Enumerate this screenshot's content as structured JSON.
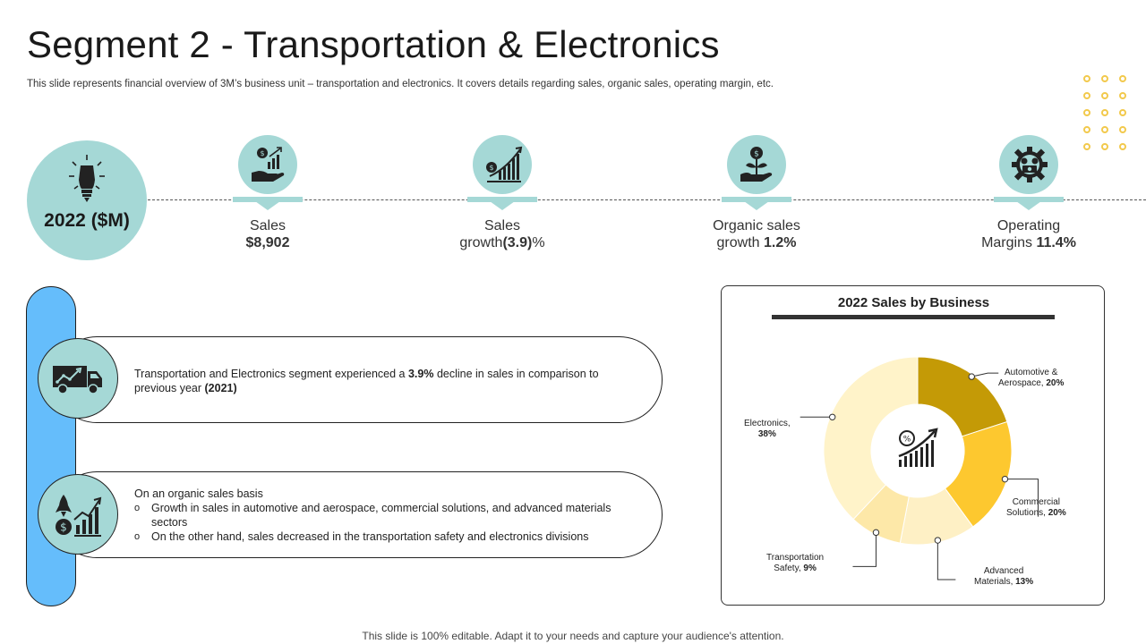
{
  "header": {
    "title": "Segment 2 - Transportation & Electronics",
    "subtitle": "This slide represents financial overview of 3M’s business unit – transportation and electronics. It covers details regarding sales, organic sales, operating margin, etc."
  },
  "year_badge": {
    "label": "2022 ($M)",
    "icon": "lightbulb-pencil-icon"
  },
  "kpis": [
    {
      "line1": "Sales",
      "line2_pre": "",
      "line2_bold": "$8,902",
      "line2_post": "",
      "icon": "hand-growth-icon"
    },
    {
      "line1": "Sales",
      "line2_pre": "growth",
      "line2_bold": "(3.9)",
      "line2_post": "%",
      "icon": "bar-growth-icon"
    },
    {
      "line1": "Organic sales",
      "line2_pre": "growth ",
      "line2_bold": "1.2%",
      "line2_post": "",
      "icon": "plant-hand-icon"
    },
    {
      "line1": "Operating",
      "line2_pre": "Margins  ",
      "line2_bold": "11.4%",
      "line2_post": "",
      "icon": "gear-money-icon"
    }
  ],
  "cards": [
    {
      "icon": "truck-chart-icon",
      "text_pre": "Transportation  and Electronics segment  experienced  a ",
      "text_bold1": "3.9%",
      "text_mid": " decline in sales in comparison to previous  year ",
      "text_bold2": "(2021)"
    },
    {
      "icon": "rocket-chart-icon",
      "heading": "On an organic sales basis",
      "bullets": [
        "Growth  in sales in automotive  and aerospace, commercial solutions, and advanced materials sectors",
        "On the other hand, sales decreased in the transportation safety and electronics divisions"
      ]
    }
  ],
  "chart_data": {
    "type": "pie",
    "title": "2022 Sales by Business",
    "donut": true,
    "center_icon": "percent-growth-icon",
    "slices": [
      {
        "name": "Automotive & Aerospace",
        "value": 20,
        "label_line1": "Automotive &",
        "label_line2_pre": "Aerospace, ",
        "label_line2_bold": "20%",
        "color": "#c49a06"
      },
      {
        "name": "Commercial Solutions",
        "value": 20,
        "label_line1": "Commercial",
        "label_line2_pre": "Solutions, ",
        "label_line2_bold": "20%",
        "color": "#fdc82f"
      },
      {
        "name": "Advanced Materials",
        "value": 13,
        "label_line1": "Advanced",
        "label_line2_pre": "Materials, ",
        "label_line2_bold": "13%",
        "color": "#fef0c5"
      },
      {
        "name": "Transportation Safety",
        "value": 9,
        "label_line1": "Transportation",
        "label_line2_pre": "Safety, ",
        "label_line2_bold": "9%",
        "color": "#fde8a8"
      },
      {
        "name": "Electronics",
        "value": 38,
        "label_line1": "Electronics,",
        "label_line2_pre": "",
        "label_line2_bold": "38%",
        "color": "#fff3c9"
      }
    ]
  },
  "footer": {
    "text": "This slide is 100% editable. Adapt it to your needs and capture your audience's attention."
  }
}
